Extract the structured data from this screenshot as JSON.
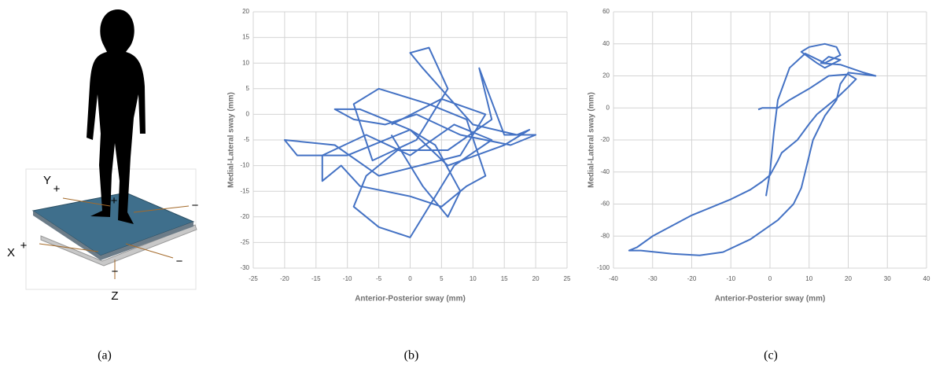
{
  "chart_data": [
    {
      "type": "line",
      "xlabel": "Anterior-Posterior sway (mm)",
      "ylabel": "Medial-Lateral sway (mm)",
      "color": "#4472c4",
      "grid": true,
      "xlim": [
        -25,
        25
      ],
      "xticks": [
        -25,
        -20,
        -15,
        -10,
        -5,
        0,
        5,
        10,
        15,
        20,
        25
      ],
      "ylim": [
        -30,
        20
      ],
      "yticks": [
        -30,
        -25,
        -20,
        -15,
        -10,
        -5,
        0,
        5,
        10,
        15,
        20
      ],
      "x": [
        -3,
        5,
        12,
        8,
        -5,
        -12,
        -20,
        -18,
        -10,
        0,
        6,
        15,
        19,
        17,
        10,
        2,
        0,
        3,
        6,
        1,
        -6,
        -9,
        -5,
        3,
        9,
        12,
        9,
        5,
        0,
        -8,
        -11,
        -14,
        -14,
        -7,
        0,
        7,
        11,
        13,
        7,
        0,
        -5,
        -9,
        -7,
        -2,
        6,
        13,
        11,
        15,
        20,
        16,
        8,
        1,
        -4,
        -9,
        -12,
        -8,
        0,
        4,
        8,
        6,
        2,
        -3
      ],
      "values": [
        -2,
        3,
        0,
        -8,
        -12,
        -6,
        -5,
        -8,
        -8,
        -3,
        -10,
        -6,
        -3,
        -4,
        -2,
        9,
        12,
        13,
        5,
        -5,
        -9,
        2,
        5,
        2,
        -1,
        -12,
        -14,
        -18,
        -16,
        -14,
        -10,
        -13,
        -8,
        -4,
        -8,
        -2,
        -4,
        -5,
        -10,
        -24,
        -22,
        -18,
        -12,
        -7,
        -7,
        -1,
        9,
        -4,
        -4,
        -6,
        -4,
        0,
        -2,
        -1,
        1,
        1,
        -3,
        -6,
        -15,
        -20,
        -14,
        -4
      ]
    },
    {
      "type": "line",
      "xlabel": "Anterior-Posterior sway (mm)",
      "ylabel": "Medial-Lateral sway (mm)",
      "color": "#4472c4",
      "grid": true,
      "xlim": [
        -40,
        40
      ],
      "xticks": [
        -40,
        -30,
        -20,
        -10,
        0,
        10,
        20,
        30,
        40
      ],
      "ylim": [
        -100,
        60
      ],
      "yticks": [
        -100,
        -80,
        -60,
        -40,
        -20,
        0,
        20,
        40,
        60
      ],
      "x": [
        -3,
        -2,
        0,
        2,
        5,
        10,
        15,
        20,
        22,
        20,
        17,
        15,
        12,
        10,
        7,
        3,
        2,
        0,
        -2,
        -5,
        -10,
        -20,
        -30,
        -34,
        -36,
        -33,
        -25,
        -18,
        -12,
        -5,
        2,
        6,
        8,
        9,
        11,
        14,
        17,
        18,
        20,
        27,
        24,
        18,
        13,
        15,
        18,
        14,
        12,
        8,
        10,
        14,
        17,
        18,
        14,
        9,
        5,
        2,
        1,
        0,
        -1
      ],
      "values": [
        -1,
        0,
        0,
        0,
        5,
        12,
        20,
        21,
        18,
        13,
        6,
        2,
        -4,
        -10,
        -20,
        -28,
        -33,
        -42,
        -46,
        -51,
        -57,
        -67,
        -80,
        -87,
        -89,
        -89,
        -91,
        -92,
        -90,
        -82,
        -70,
        -60,
        -50,
        -40,
        -20,
        -5,
        5,
        15,
        22,
        20,
        22,
        27,
        28,
        32,
        30,
        25,
        28,
        35,
        38,
        40,
        38,
        33,
        28,
        34,
        25,
        5,
        -15,
        -40,
        -55
      ]
    }
  ],
  "panel_a": {
    "labels": [
      "Y",
      "+",
      "X",
      "+",
      "Z",
      "−",
      "−",
      "−",
      "+"
    ]
  },
  "captions": [
    "(a)",
    "(b)",
    "(c)"
  ]
}
